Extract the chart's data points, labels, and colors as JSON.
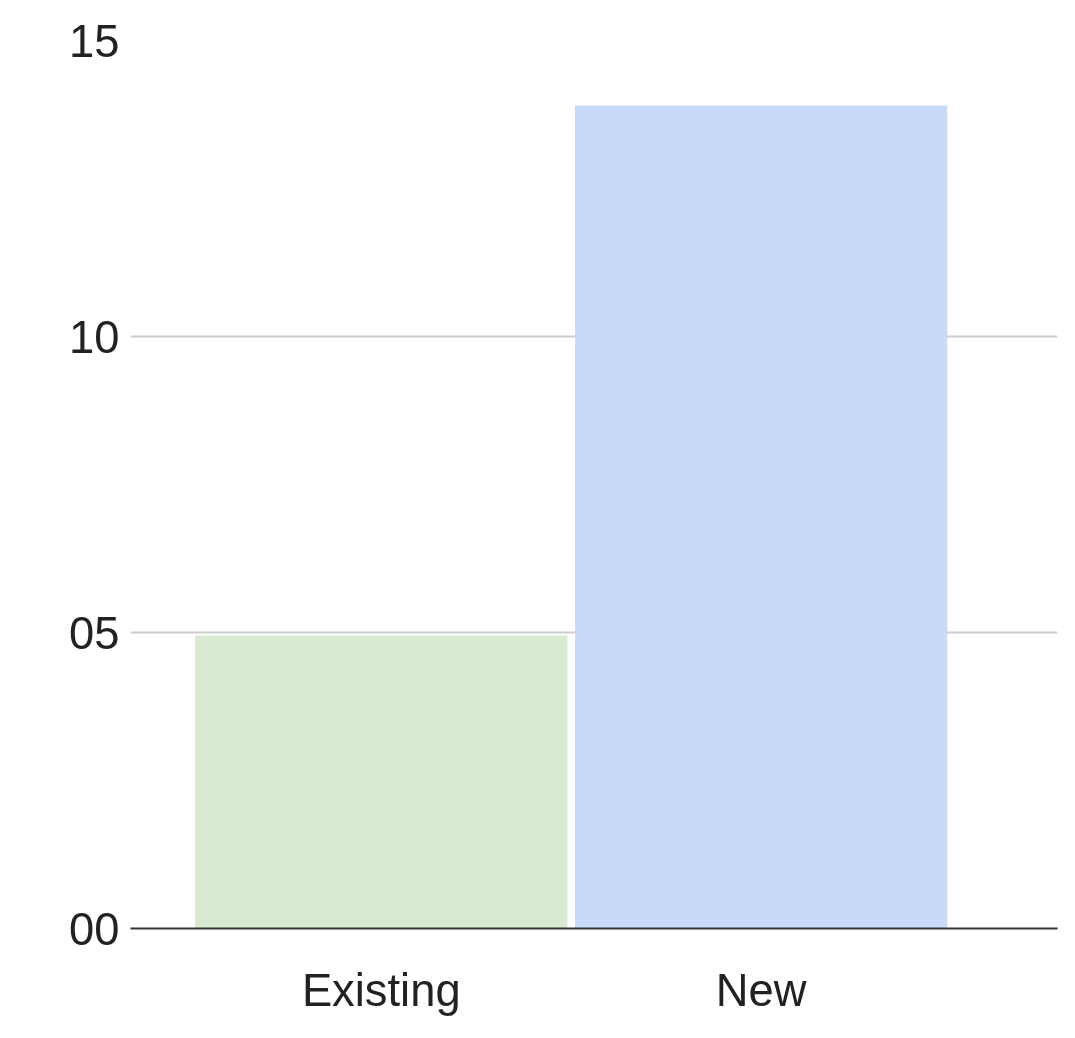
{
  "chart_data": {
    "type": "bar",
    "categories": [
      "Existing",
      "New"
    ],
    "values": [
      4.95,
      13.9
    ],
    "colors": [
      "#d9ead3",
      "#c9daf8"
    ],
    "ylim": [
      0,
      15
    ],
    "yticks": [
      {
        "value": 0,
        "label": "00"
      },
      {
        "value": 5,
        "label": "05"
      },
      {
        "value": 10,
        "label": "10"
      },
      {
        "value": 15,
        "label": "15"
      }
    ],
    "grid": "y"
  }
}
